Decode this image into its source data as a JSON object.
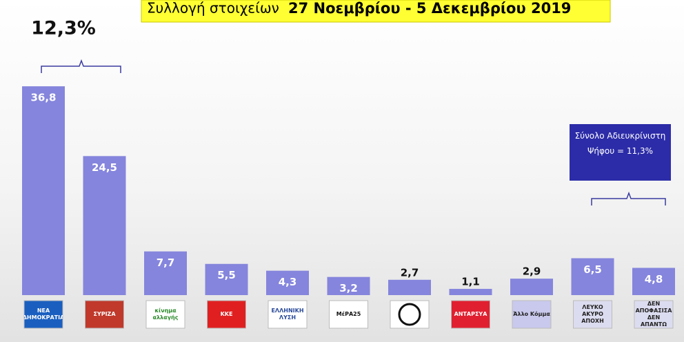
{
  "chart_data": {
    "type": "bar",
    "title_prefix": "Συλλογή στοιχείων",
    "title": "27 Νοεμβρίου - 5 Δεκεμβρίου 2019",
    "categories": [
      "ΝΕΑ ΔΗΜΟΚΡΑΤΙΑ",
      "ΣΥΡΙΖΑ",
      "κίνημα αλλαγής",
      "ΚΚΕ",
      "ΕΛΛΗΝΙΚΗ ΛΥΣΗ",
      "ΜέΡΑ25",
      null,
      "ΑΝΤΑΡΣΥΑ",
      "Άλλο Κόμμα",
      "ΛΕΥΚΟ ΑΚΥΡΟ ΑΠΟΧΗ",
      "ΔΕΝ ΑΠΟΦΑΣΙΣΑ ΔΕΝ ΑΠΑΝΤΩ"
    ],
    "values": [
      36.8,
      24.5,
      7.7,
      5.5,
      4.3,
      3.2,
      2.7,
      1.1,
      2.9,
      6.5,
      4.8
    ],
    "value_labels": [
      "36,8",
      "24,5",
      "7,7",
      "5,5",
      "4,3",
      "3,2",
      "2,7",
      "1,1",
      "2,9",
      "6,5",
      "4,8"
    ],
    "color": "#8585dd",
    "annotations": [
      "12,3%",
      "Σύνολο Αδιευκρίνιστη Ψήφου = 11,3%"
    ]
  }
}
